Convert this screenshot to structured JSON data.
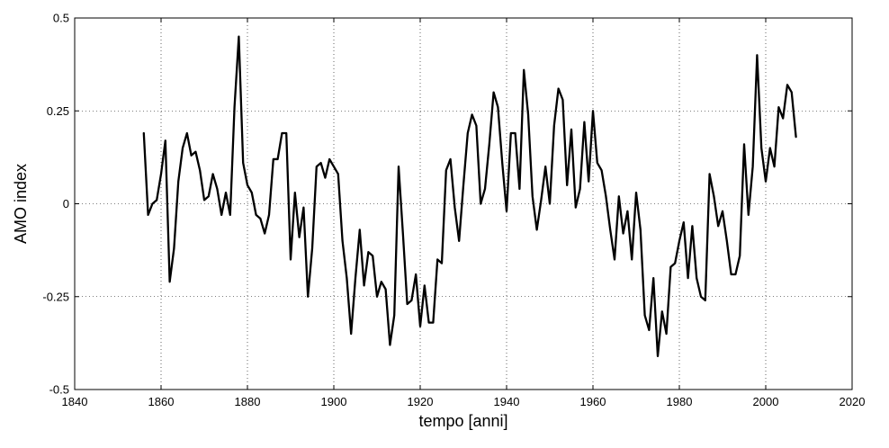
{
  "chart_data": {
    "type": "line",
    "title": "",
    "xlabel": "tempo [anni]",
    "ylabel": "AMO index",
    "xlim": [
      1840,
      2020
    ],
    "ylim": [
      -0.5,
      0.5
    ],
    "x_ticks": [
      1840,
      1860,
      1880,
      1900,
      1920,
      1940,
      1960,
      1980,
      2000,
      2020
    ],
    "x_tick_labels": [
      "1840",
      "1860",
      "1880",
      "1900",
      "1920",
      "1940",
      "1960",
      "1980",
      "2000",
      "2020"
    ],
    "y_ticks": [
      -0.5,
      -0.25,
      0,
      0.25,
      0.5
    ],
    "y_tick_labels": [
      "-0.5",
      "-0.25",
      "0",
      "0.25",
      "0.5"
    ],
    "grid": true,
    "grid_style": "dotted",
    "line_color": "#000000",
    "series": [
      {
        "x": [
          1856,
          1857,
          1858,
          1859,
          1860,
          1861,
          1862,
          1863,
          1864,
          1865,
          1866,
          1867,
          1868,
          1869,
          1870,
          1871,
          1872,
          1873,
          1874,
          1875,
          1876,
          1877,
          1878,
          1879,
          1880,
          1881,
          1882,
          1883,
          1884,
          1885,
          1886,
          1887,
          1888,
          1889,
          1890,
          1891,
          1892,
          1893,
          1894,
          1895,
          1896,
          1897,
          1898,
          1899,
          1900,
          1901,
          1902,
          1903,
          1904,
          1905,
          1906,
          1907,
          1908,
          1909,
          1910,
          1911,
          1912,
          1913,
          1914,
          1915,
          1916,
          1917,
          1918,
          1919,
          1920,
          1921,
          1922,
          1923,
          1924,
          1925,
          1926,
          1927,
          1928,
          1929,
          1930,
          1931,
          1932,
          1933,
          1934,
          1935,
          1936,
          1937,
          1938,
          1939,
          1940,
          1941,
          1942,
          1943,
          1944,
          1945,
          1946,
          1947,
          1948,
          1949,
          1950,
          1951,
          1952,
          1953,
          1954,
          1955,
          1956,
          1957,
          1958,
          1959,
          1960,
          1961,
          1962,
          1963,
          1964,
          1965,
          1966,
          1967,
          1968,
          1969,
          1970,
          1971,
          1972,
          1973,
          1974,
          1975,
          1976,
          1977,
          1978,
          1979,
          1980,
          1981,
          1982,
          1983,
          1984,
          1985,
          1986,
          1987,
          1988,
          1989,
          1990,
          1991,
          1992,
          1993,
          1994,
          1995,
          1996,
          1997,
          1998,
          1999,
          2000,
          2001,
          2002,
          2003,
          2004,
          2005,
          2006,
          2007
        ],
        "values": [
          0.19,
          -0.03,
          0.0,
          0.01,
          0.08,
          0.17,
          -0.21,
          -0.12,
          0.06,
          0.15,
          0.19,
          0.13,
          0.14,
          0.09,
          0.01,
          0.02,
          0.08,
          0.04,
          -0.03,
          0.03,
          -0.03,
          0.26,
          0.45,
          0.11,
          0.05,
          0.03,
          -0.03,
          -0.04,
          -0.08,
          -0.03,
          0.12,
          0.12,
          0.19,
          0.19,
          -0.15,
          0.03,
          -0.09,
          -0.01,
          -0.25,
          -0.12,
          0.1,
          0.11,
          0.07,
          0.12,
          0.1,
          0.08,
          -0.1,
          -0.2,
          -0.35,
          -0.2,
          -0.07,
          -0.22,
          -0.13,
          -0.14,
          -0.25,
          -0.21,
          -0.23,
          -0.38,
          -0.3,
          0.1,
          -0.08,
          -0.27,
          -0.26,
          -0.19,
          -0.33,
          -0.22,
          -0.32,
          -0.32,
          -0.15,
          -0.16,
          0.09,
          0.12,
          -0.01,
          -0.1,
          0.05,
          0.19,
          0.24,
          0.21,
          0.0,
          0.04,
          0.16,
          0.3,
          0.26,
          0.11,
          -0.02,
          0.19,
          0.19,
          0.04,
          0.36,
          0.24,
          0.02,
          -0.07,
          0.01,
          0.1,
          0.0,
          0.21,
          0.31,
          0.28,
          0.05,
          0.2,
          -0.01,
          0.04,
          0.22,
          0.06,
          0.25,
          0.11,
          0.09,
          0.02,
          -0.07,
          -0.15,
          0.02,
          -0.08,
          -0.02,
          -0.15,
          0.03,
          -0.07,
          -0.3,
          -0.34,
          -0.2,
          -0.41,
          -0.29,
          -0.35,
          -0.17,
          -0.16,
          -0.1,
          -0.05,
          -0.2,
          -0.06,
          -0.2,
          -0.25,
          -0.26,
          0.08,
          0.02,
          -0.06,
          -0.02,
          -0.1,
          -0.19,
          -0.19,
          -0.14,
          0.16,
          -0.03,
          0.1,
          0.4,
          0.15,
          0.06,
          0.15,
          0.1,
          0.26,
          0.23,
          0.32,
          0.3,
          0.18
        ]
      }
    ]
  }
}
